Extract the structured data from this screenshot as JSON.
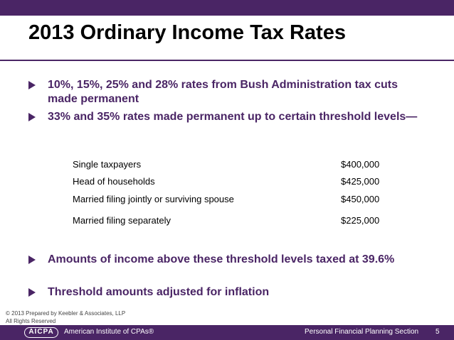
{
  "slide": {
    "title": "2013 Ordinary Income Tax Rates",
    "bullets": [
      "10%, 15%, 25% and 28% rates from Bush Administration tax cuts made permanent",
      "33% and 35% rates made permanent up to certain threshold levels—",
      "Amounts of income above these threshold levels taxed at 39.6%",
      "Threshold amounts adjusted for inflation"
    ],
    "thresholds": [
      {
        "label": "Single taxpayers",
        "amount": "$400,000"
      },
      {
        "label": "Head of households",
        "amount": "$425,000"
      },
      {
        "label": "Married filing jointly or surviving spouse",
        "amount": "$450,000"
      },
      {
        "label": "Married filing separately",
        "amount": "$225,000"
      }
    ]
  },
  "footer": {
    "copyright_line1": "© 2013 Prepared by Keebler & Associates, LLP",
    "copyright_line2": "All Rights Reserved",
    "logo_text": "AICPA",
    "organization": "American Institute of CPAs®",
    "section": "Personal Financial Planning Section",
    "page_number": "5"
  },
  "colors": {
    "brand_purple": "#4a2565"
  }
}
